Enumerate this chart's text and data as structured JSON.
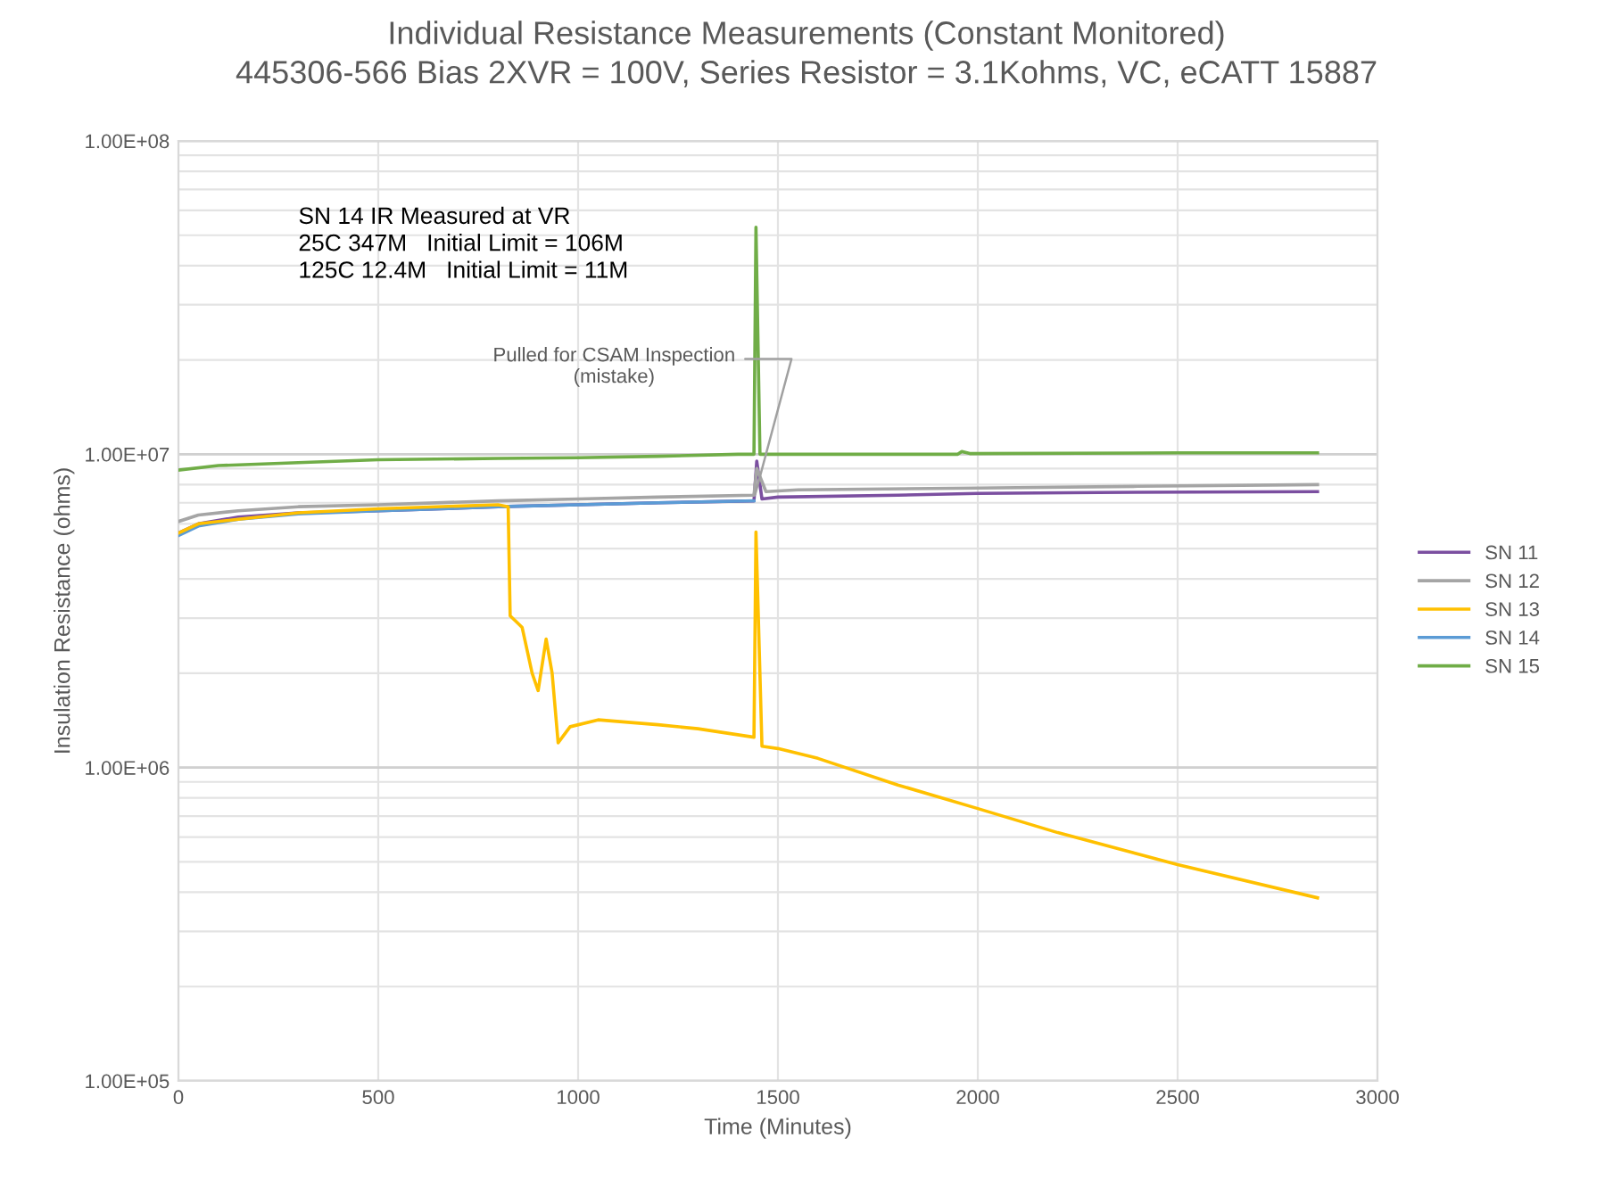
{
  "chart_data": {
    "type": "line",
    "title": "Individual Resistance Measurements (Constant Monitored)",
    "subtitle": "445306-566 Bias 2XVR = 100V, Series Resistor = 3.1Kohms, VC, eCATT 15887",
    "xlabel": "Time (Minutes)",
    "ylabel": "Insulation Resistance (ohms)",
    "xlim": [
      0,
      3000
    ],
    "xticks": [
      0,
      500,
      1000,
      1500,
      2000,
      2500,
      3000
    ],
    "ylim": [
      100000,
      100000000
    ],
    "log": true,
    "yticks": [
      {
        "value": 100000,
        "label": "1.00E+05"
      },
      {
        "value": 200000,
        "label": null
      },
      {
        "value": 300000,
        "label": null
      },
      {
        "value": 400000,
        "label": null
      },
      {
        "value": 500000,
        "label": null
      },
      {
        "value": 600000,
        "label": null
      },
      {
        "value": 700000,
        "label": null
      },
      {
        "value": 800000,
        "label": null
      },
      {
        "value": 900000,
        "label": null
      },
      {
        "value": 1000000,
        "label": "1.00E+06"
      },
      {
        "value": 2000000,
        "label": null
      },
      {
        "value": 3000000,
        "label": null
      },
      {
        "value": 4000000,
        "label": null
      },
      {
        "value": 5000000,
        "label": null
      },
      {
        "value": 6000000,
        "label": null
      },
      {
        "value": 7000000,
        "label": null
      },
      {
        "value": 8000000,
        "label": null
      },
      {
        "value": 9000000,
        "label": null
      },
      {
        "value": 10000000,
        "label": "1.00E+07"
      },
      {
        "value": 20000000,
        "label": null
      },
      {
        "value": 30000000,
        "label": null
      },
      {
        "value": 40000000,
        "label": null
      },
      {
        "value": 50000000,
        "label": null
      },
      {
        "value": 60000000,
        "label": null
      },
      {
        "value": 70000000,
        "label": null
      },
      {
        "value": 80000000,
        "label": null
      },
      {
        "value": 90000000,
        "label": null
      },
      {
        "value": 100000000,
        "label": "1.00E+08"
      }
    ],
    "grid": true,
    "legend": "right",
    "marker": "none",
    "line_style": "solid",
    "series": [
      {
        "name": "SN 11",
        "color": "#7b4fa0",
        "x": [
          0,
          50,
          150,
          300,
          500,
          800,
          1000,
          1200,
          1440,
          1447,
          1460,
          1500,
          1800,
          2000,
          2300,
          2850
        ],
        "values": [
          5600000,
          6000000,
          6300000,
          6500000,
          6600000,
          6800000,
          6900000,
          7000000,
          7100000,
          9500000,
          7200000,
          7300000,
          7400000,
          7500000,
          7550000,
          7600000
        ]
      },
      {
        "name": "SN 12",
        "color": "#a5a5a5",
        "x": [
          0,
          50,
          150,
          300,
          500,
          800,
          1000,
          1200,
          1440,
          1447,
          1470,
          1550,
          2000,
          2400,
          2850
        ],
        "values": [
          6100000,
          6400000,
          6600000,
          6800000,
          6900000,
          7100000,
          7200000,
          7300000,
          7400000,
          9000000,
          7600000,
          7700000,
          7800000,
          7900000,
          8000000
        ]
      },
      {
        "name": "SN 13",
        "color": "#ffc000",
        "x": [
          0,
          50,
          150,
          300,
          500,
          800,
          825,
          830,
          860,
          885,
          900,
          920,
          935,
          950,
          980,
          1050,
          1200,
          1300,
          1440,
          1445,
          1460,
          1500,
          1600,
          1800,
          2000,
          2200,
          2500,
          2850
        ],
        "values": [
          5600000,
          6000000,
          6200000,
          6500000,
          6700000,
          6900000,
          6800000,
          3050000,
          2800000,
          2000000,
          1760000,
          2570000,
          2000000,
          1200000,
          1350000,
          1420000,
          1370000,
          1330000,
          1250000,
          5650000,
          1170000,
          1150000,
          1070000,
          880000,
          740000,
          620000,
          490000,
          384000
        ]
      },
      {
        "name": "SN 14",
        "color": "#5b9bd5",
        "x": [
          0,
          50,
          150,
          300,
          500,
          800,
          1000,
          1200,
          1440
        ],
        "values": [
          5500000,
          5900000,
          6200000,
          6450000,
          6600000,
          6800000,
          6900000,
          7000000,
          7100000
        ]
      },
      {
        "name": "SN 15",
        "color": "#70ad47",
        "x": [
          0,
          100,
          300,
          500,
          800,
          1000,
          1200,
          1400,
          1440,
          1445,
          1455,
          1500,
          1950,
          1960,
          1980,
          2500,
          2850
        ],
        "values": [
          8900000,
          9200000,
          9400000,
          9600000,
          9700000,
          9750000,
          9850000,
          10000000,
          10000000,
          53000000,
          10000000,
          10000000,
          10000000,
          10200000,
          10050000,
          10100000,
          10100000
        ]
      }
    ],
    "annotations": [
      "SN 14 IR Measured at VR\n25C 347M   Initial Limit = 106M\n125C 12.4M   Initial Limit = 11M",
      {
        "text": "Pulled for CSAM Inspection\n(mistake)",
        "x": 1440,
        "y": 7200000
      }
    ]
  }
}
